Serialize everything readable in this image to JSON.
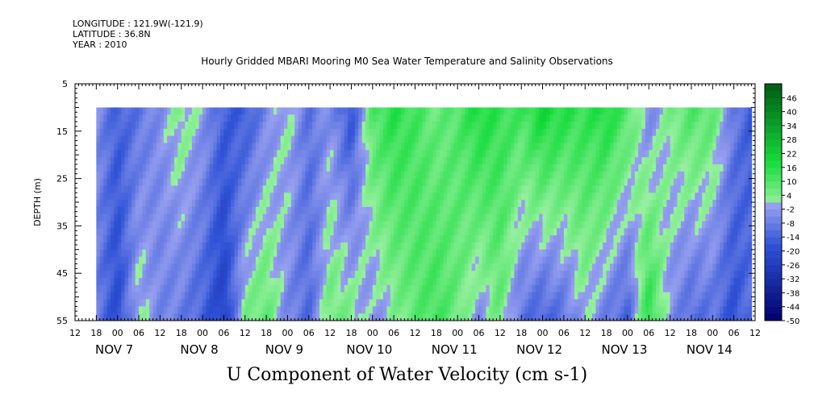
{
  "header": {
    "longitude": "LONGITUDE : 121.9W(-121.9)",
    "latitude": "LATITUDE : 36.8N",
    "year": "YEAR : 2010"
  },
  "chart_data": {
    "type": "heatmap",
    "title": "Hourly Gridded MBARI Mooring M0 Sea Water Temperature and Salinity Observations",
    "xlabel": "U Component of Water Velocity (cm s-1)",
    "ylabel": "DEPTH (m)",
    "ylim": [
      55,
      5
    ],
    "yticks": [
      5,
      15,
      25,
      35,
      45,
      55
    ],
    "xlim_hours": [
      -12,
      180
    ],
    "x_hour_tick_labels": [
      "12",
      "18",
      "00",
      "06",
      "12",
      "18",
      "00",
      "06",
      "12",
      "18",
      "00",
      "06",
      "12",
      "18",
      "00",
      "06",
      "12",
      "18",
      "00",
      "06",
      "12",
      "18",
      "00",
      "06",
      "12",
      "18",
      "00",
      "06",
      "12",
      "18",
      "00",
      "06",
      "12"
    ],
    "date_labels": [
      "NOV  7",
      "NOV  8",
      "NOV  9",
      "NOV 10",
      "NOV 11",
      "NOV 12",
      "NOV 13",
      "NOV 14"
    ],
    "data_depth_range": [
      10,
      55
    ],
    "data_time_range_hours": [
      -6,
      179
    ],
    "colorbar": {
      "levels": [
        -50,
        -44,
        -38,
        -32,
        -26,
        -20,
        -14,
        -8,
        -2,
        4,
        10,
        16,
        22,
        28,
        34,
        40,
        46
      ],
      "range": [
        -50,
        52
      ],
      "colors": {
        "deep_negative": "#00006e",
        "negative": "#2f52d6",
        "weak_negative": "#9aa2f0",
        "weak_positive": "#98f0a0",
        "positive": "#16dc3c",
        "deep_positive": "#005a14"
      }
    },
    "column_profiles": {
      "description_hours": "approximate U velocity (cm s-1) at 10 m and 55 m depth by hour from Nov 7 00:00",
      "hours": [
        -6,
        0,
        6,
        12,
        18,
        24,
        30,
        36,
        42,
        48,
        54,
        60,
        66,
        72,
        78,
        84,
        90,
        96,
        102,
        108,
        114,
        120,
        126,
        132,
        138,
        144,
        150,
        156,
        162,
        168,
        174,
        179
      ],
      "u_surface": [
        -4,
        -14,
        -10,
        -4,
        4,
        -2,
        -14,
        -16,
        -6,
        2,
        -10,
        -4,
        -18,
        10,
        16,
        12,
        6,
        10,
        18,
        14,
        12,
        20,
        16,
        14,
        18,
        10,
        -6,
        4,
        10,
        8,
        -8,
        -16
      ],
      "u_bottom": [
        -8,
        -20,
        2,
        -6,
        -8,
        -14,
        -24,
        4,
        8,
        -6,
        -12,
        6,
        4,
        -4,
        2,
        8,
        12,
        6,
        -4,
        6,
        -10,
        -14,
        -10,
        0,
        -8,
        -14,
        16,
        -4,
        -12,
        -10,
        -18,
        -10
      ]
    }
  }
}
